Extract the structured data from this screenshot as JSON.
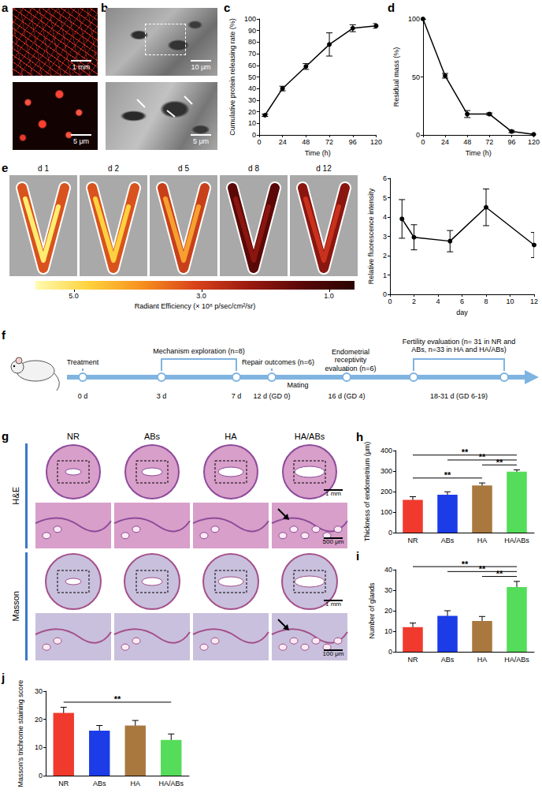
{
  "panels": {
    "a": {
      "label": "a",
      "scale_bars": [
        "1 mm",
        "5 μm"
      ]
    },
    "b": {
      "label": "b",
      "scale_bars": [
        "10 μm",
        "5 μm"
      ]
    },
    "e": {
      "label": "e",
      "days": [
        "d 1",
        "d 2",
        "d 5",
        "d 8",
        "d 12"
      ],
      "colorbar": {
        "title": "Radiant Efficiency (× 10⁸ p/sec/cm²/sr)",
        "range": [
          5.6,
          0.6
        ],
        "ticks": [
          {
            "value": 5,
            "label": "5.0"
          },
          {
            "value": 3,
            "label": "3.0"
          },
          {
            "value": 1,
            "label": "1.0"
          }
        ]
      }
    },
    "f": {
      "label": "f",
      "days": [
        "0 d",
        "3 d",
        "7 d",
        "12 d (GD 0)",
        "16 d (GD 4)",
        "18-31 d (GD 6-19)"
      ],
      "events": [
        "Treatment",
        "Mechanism exploration (n=8)",
        "Repair outcomes (n=6)",
        "Endometrial receptivity evaluation (n=6)",
        "Fertility evaluation (n= 31 in NR and ABs, n=33 in HA and HA/ABs)"
      ],
      "note": "Mating"
    },
    "g": {
      "label": "g",
      "groups": [
        "NR",
        "ABs",
        "HA",
        "HA/ABs"
      ],
      "stains": [
        {
          "name": "H&E",
          "scale_bars": [
            "1 mm",
            "500 μm"
          ]
        },
        {
          "name": "Masson",
          "scale_bars": [
            "1 mm",
            "100 μm"
          ]
        }
      ]
    }
  },
  "chart_data": [
    {
      "panel": "c",
      "type": "line",
      "x_label": "Time (h)",
      "y_label": "Cumulative protein releasing rate (%)",
      "x": [
        6,
        24,
        48,
        72,
        96,
        120
      ],
      "values": [
        17,
        40,
        59,
        78,
        92,
        94
      ],
      "errors": [
        1,
        2,
        2.5,
        10,
        3,
        2
      ],
      "xlim": [
        0,
        120
      ],
      "xticks": [
        0,
        24,
        48,
        72,
        96,
        120
      ],
      "ylim": [
        0,
        100
      ],
      "yticks": [
        0,
        10,
        20,
        30,
        40,
        50,
        60,
        70,
        80,
        90,
        100
      ],
      "color": "#000000",
      "marker": "circle",
      "grid": false
    },
    {
      "panel": "d",
      "type": "line",
      "x_label": "Time (h)",
      "y_label": "Residual mass (%)",
      "x": [
        0,
        24,
        48,
        72,
        96,
        120
      ],
      "values": [
        100,
        51,
        18,
        18,
        3,
        0.5
      ],
      "errors": [
        0,
        2,
        3,
        1,
        1,
        0.5
      ],
      "xlim": [
        0,
        120
      ],
      "xticks": [
        0,
        24,
        48,
        72,
        96,
        120
      ],
      "ylim": [
        0,
        100
      ],
      "yticks": [
        0,
        50,
        100
      ],
      "color": "#000000",
      "marker": "circle",
      "grid": false
    },
    {
      "type": "line",
      "x_label": "day",
      "y_label": "Relative fluorescence intensity",
      "x": [
        1,
        2,
        5,
        8,
        12
      ],
      "values": [
        3.9,
        2.95,
        2.75,
        4.5,
        2.55
      ],
      "errors": [
        1.0,
        0.65,
        0.55,
        0.95,
        0.65
      ],
      "xlim": [
        0,
        12
      ],
      "xticks": [
        0,
        2,
        4,
        6,
        8,
        10,
        12
      ],
      "ylim": [
        0,
        6
      ],
      "yticks": [
        0,
        1,
        2,
        3,
        4,
        5,
        6
      ],
      "color": "#000000",
      "marker": "circle",
      "grid": false
    },
    {
      "panel": "h",
      "type": "bar",
      "y_label": "Thickness of endometrium (μm)",
      "categories": [
        "NR",
        "ABs",
        "HA",
        "HA/ABs"
      ],
      "values": [
        160,
        185,
        230,
        297
      ],
      "errors": [
        15,
        14,
        12,
        9
      ],
      "colors": [
        "#f03a2e",
        "#1c3ce8",
        "#a8783f",
        "#55dc5a"
      ],
      "ylim": [
        0,
        400
      ],
      "yticks": [
        0,
        100,
        200,
        300,
        400
      ],
      "grid": false,
      "significance": [
        {
          "groups": [
            "NR",
            "HA"
          ],
          "label": "**"
        },
        {
          "groups": [
            "NR",
            "HA/ABs"
          ],
          "label": "**"
        },
        {
          "groups": [
            "ABs",
            "HA/ABs"
          ],
          "label": "**"
        },
        {
          "groups": [
            "HA",
            "HA/ABs"
          ],
          "label": "**"
        }
      ]
    },
    {
      "panel": "i",
      "type": "bar",
      "y_label": "Number of glands",
      "categories": [
        "NR",
        "ABs",
        "HA",
        "HA/ABs"
      ],
      "values": [
        12,
        17.5,
        15,
        31.5
      ],
      "errors": [
        2,
        2.5,
        2.2,
        2.8
      ],
      "colors": [
        "#f03a2e",
        "#1c3ce8",
        "#a8783f",
        "#55dc5a"
      ],
      "ylim": [
        0,
        40
      ],
      "yticks": [
        0,
        10,
        20,
        30,
        40
      ],
      "grid": false,
      "significance": [
        {
          "groups": [
            "NR",
            "HA/ABs"
          ],
          "label": "**"
        },
        {
          "groups": [
            "ABs",
            "HA/ABs"
          ],
          "label": "**"
        },
        {
          "groups": [
            "HA",
            "HA/ABs"
          ],
          "label": "**"
        }
      ]
    },
    {
      "panel": "j",
      "type": "bar",
      "y_label": "Masson's trichrome staining score",
      "categories": [
        "NR",
        "ABs",
        "HA",
        "HA/ABs"
      ],
      "values": [
        22.3,
        16,
        17.8,
        12.7
      ],
      "errors": [
        2,
        1.8,
        1.8,
        2.1
      ],
      "colors": [
        "#f03a2e",
        "#1c3ce8",
        "#a8783f",
        "#55dc5a"
      ],
      "ylim": [
        0,
        30
      ],
      "yticks": [
        0,
        10,
        20,
        30
      ],
      "grid": false,
      "significance": [
        {
          "groups": [
            "NR",
            "HA/ABs"
          ],
          "label": "**"
        }
      ]
    }
  ]
}
